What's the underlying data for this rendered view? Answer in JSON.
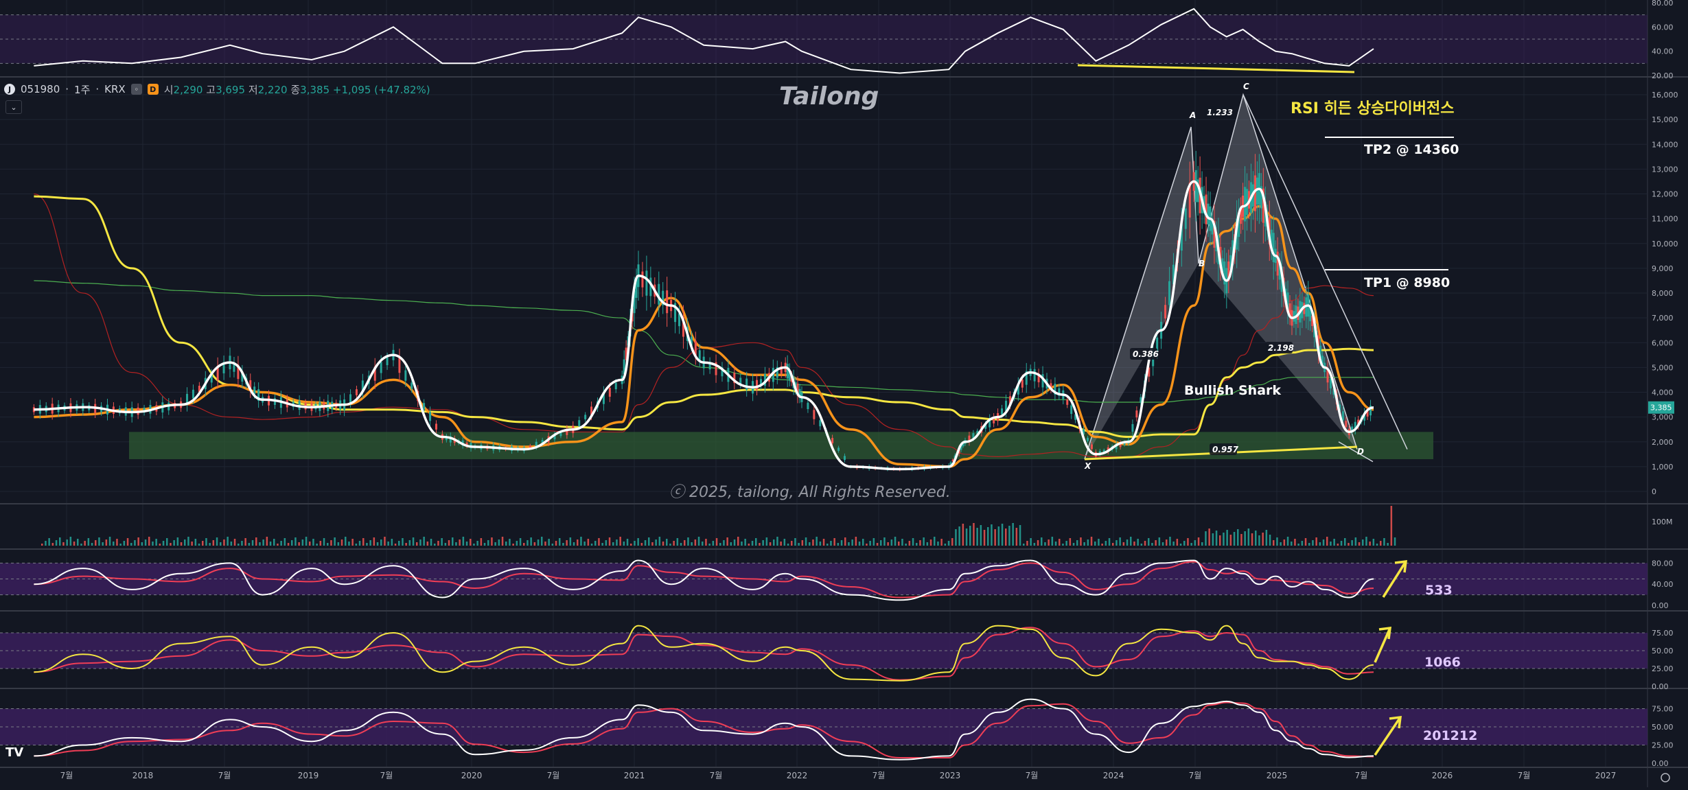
{
  "header": {
    "symbol": "051980",
    "interval": "1주",
    "exchange": "KRX",
    "separator1": "·",
    "separator2": "·",
    "badge_d": "D",
    "open_label": "시",
    "open": "2,290",
    "high_label": "고",
    "high": "3,695",
    "low_label": "저",
    "low": "2,220",
    "close_label": "종",
    "close": "3,385",
    "change": "+1,095 (+47.82%)"
  },
  "annotations": {
    "brand": "Tailong",
    "copyright": "ⓒ 2025, tailong, All Rights Reserved.",
    "rsi_divergence": "RSI 히든 상승다이버전스",
    "tp2": "TP2 @ 14360",
    "tp1": "TP1 @ 8980",
    "pattern": "Bullish Shark",
    "pts": {
      "X": "X",
      "A": "A",
      "B": "B",
      "C": "C",
      "D": "D"
    },
    "ratios": {
      "xab": "0.386",
      "abc": "1.233",
      "bcd": "2.198",
      "xd": "0.957"
    },
    "osc_labels": [
      "533",
      "1066",
      "201212"
    ],
    "last_price_tag": "3,385",
    "tv_logo": "TV"
  },
  "colors": {
    "background": "#131722",
    "grid": "#1f2533",
    "up": "#26a69a",
    "down": "#ef5350",
    "price_line": "#ffffff",
    "ma_orange": "#f7931a",
    "ma_yellow": "#f5e642",
    "ma_red": "#b22222",
    "ma_green": "#4caf50",
    "zone": "#2e5a33",
    "osc_band": "#3a1f5c"
  },
  "chart_data": [
    {
      "type": "line",
      "name": "price",
      "x_axis_labels": [
        "7월",
        "2018",
        "7월",
        "2019",
        "7월",
        "2020",
        "7월",
        "2021",
        "7월",
        "2022",
        "7월",
        "2023",
        "7월",
        "2024",
        "7월",
        "2025",
        "7월",
        "2026",
        "7월",
        "2027"
      ],
      "y_ticks": [
        "16,000",
        "15,000",
        "14,000",
        "13,000",
        "12,000",
        "11,000",
        "10,000",
        "9,000",
        "8,000",
        "7,000",
        "6,000",
        "5,000",
        "4,000",
        "3,000",
        "2,000",
        "1,000",
        "0"
      ],
      "ylim": [
        0,
        16000
      ],
      "x_years": [
        2017.3,
        2017.6,
        2017.9,
        2018.2,
        2018.5,
        2018.7,
        2019.0,
        2019.2,
        2019.5,
        2019.8,
        2020.0,
        2020.3,
        2020.6,
        2020.9,
        2021.0,
        2021.2,
        2021.4,
        2021.7,
        2021.9,
        2022.0,
        2022.3,
        2022.6,
        2022.9,
        2023.0,
        2023.2,
        2023.4,
        2023.6,
        2023.8,
        2024.0,
        2024.2,
        2024.4,
        2024.5,
        2024.6,
        2024.7,
        2024.8,
        2024.9,
        2025.0,
        2025.1,
        2025.2,
        2025.35,
        2025.5
      ],
      "close": [
        3300,
        3400,
        3200,
        3500,
        5200,
        3700,
        3400,
        3500,
        5500,
        2200,
        1800,
        1700,
        2500,
        4500,
        8700,
        7500,
        5200,
        4200,
        5000,
        3800,
        1000,
        900,
        1000,
        2000,
        3000,
        4800,
        3900,
        1500,
        2000,
        6500,
        12500,
        11000,
        8500,
        11500,
        12200,
        9500,
        7000,
        7500,
        5000,
        2400,
        3385
      ],
      "ma_orange": [
        3000,
        3100,
        3300,
        3500,
        4300,
        4000,
        3600,
        3500,
        4500,
        3000,
        2000,
        1800,
        2000,
        2800,
        6500,
        7800,
        5800,
        4700,
        4700,
        4500,
        2500,
        1100,
        1000,
        1300,
        2500,
        3800,
        4300,
        2200,
        1900,
        3500,
        7500,
        10000,
        10500,
        11000,
        11500,
        11000,
        9000,
        8000,
        6000,
        4000,
        3300
      ],
      "ma_yellow": [
        11900,
        11800,
        9000,
        6000,
        4300,
        4000,
        3500,
        3300,
        3300,
        3200,
        3000,
        2800,
        2600,
        2500,
        3000,
        3600,
        3900,
        4100,
        4100,
        4000,
        3800,
        3600,
        3300,
        3000,
        2900,
        2800,
        2700,
        2400,
        2200,
        2300,
        2300,
        3500,
        4600,
        5000,
        5200,
        5500,
        5600,
        5700,
        5700,
        5750,
        5700
      ],
      "ma_green": [
        8500,
        8400,
        8300,
        8100,
        8000,
        7900,
        7900,
        7800,
        7700,
        7600,
        7500,
        7400,
        7300,
        7000,
        6500,
        5500,
        5000,
        4700,
        4500,
        4300,
        4200,
        4100,
        4000,
        3900,
        3800,
        3700,
        3700,
        3600,
        3600,
        3600,
        3700,
        3800,
        3900,
        4100,
        4300,
        4500,
        4600,
        4600,
        4600,
        4600,
        4600
      ],
      "ma_red": [
        12000,
        8000,
        4800,
        3500,
        3000,
        2900,
        3000,
        3200,
        3400,
        3300,
        3000,
        2500,
        2400,
        2400,
        3500,
        5000,
        5800,
        6000,
        5700,
        5000,
        3500,
        2500,
        1800,
        1500,
        1400,
        1500,
        1600,
        1400,
        1400,
        1800,
        2500,
        3500,
        4500,
        5500,
        6500,
        7000,
        7700,
        8200,
        8300,
        8200,
        7900
      ],
      "volume_spike_last": "100M"
    },
    {
      "type": "line",
      "name": "RSI",
      "y_ticks": [
        "80.00",
        "60.00",
        "40.00",
        "20.00"
      ],
      "ylim": [
        20,
        80
      ],
      "values": [
        28,
        32,
        30,
        35,
        45,
        38,
        33,
        40,
        60,
        30,
        30,
        40,
        42,
        55,
        68,
        60,
        45,
        42,
        48,
        40,
        25,
        22,
        25,
        40,
        55,
        68,
        58,
        32,
        45,
        62,
        75,
        60,
        52,
        58,
        48,
        40,
        38,
        34,
        30,
        28,
        42
      ]
    },
    {
      "type": "line",
      "name": "osc_533",
      "y_ticks": [
        "80.00",
        "40.00",
        "0.00"
      ],
      "ylim": [
        0,
        100
      ],
      "values": [
        40,
        70,
        30,
        60,
        80,
        20,
        70,
        40,
        75,
        15,
        50,
        70,
        30,
        65,
        85,
        40,
        70,
        30,
        60,
        50,
        20,
        10,
        30,
        60,
        75,
        85,
        40,
        20,
        60,
        80,
        85,
        50,
        70,
        60,
        40,
        55,
        35,
        45,
        30,
        15,
        50
      ]
    },
    {
      "type": "line",
      "name": "osc_1066",
      "y_ticks": [
        "75.00",
        "50.00",
        "25.00",
        "0.00"
      ],
      "ylim": [
        0,
        100
      ],
      "values": [
        20,
        45,
        25,
        60,
        70,
        30,
        55,
        40,
        75,
        20,
        35,
        55,
        30,
        60,
        85,
        55,
        60,
        35,
        55,
        50,
        10,
        8,
        20,
        60,
        85,
        80,
        40,
        15,
        60,
        80,
        75,
        65,
        85,
        60,
        40,
        35,
        35,
        30,
        25,
        10,
        30
      ]
    },
    {
      "type": "line",
      "name": "osc_201212",
      "y_ticks": [
        "75.00",
        "50.00",
        "25.00",
        "0.00"
      ],
      "ylim": [
        0,
        100
      ],
      "values": [
        10,
        25,
        35,
        30,
        60,
        50,
        30,
        45,
        70,
        40,
        12,
        18,
        35,
        60,
        80,
        70,
        45,
        40,
        55,
        50,
        10,
        5,
        10,
        40,
        70,
        88,
        75,
        40,
        15,
        55,
        78,
        82,
        85,
        80,
        70,
        45,
        30,
        20,
        12,
        8,
        10
      ]
    }
  ]
}
